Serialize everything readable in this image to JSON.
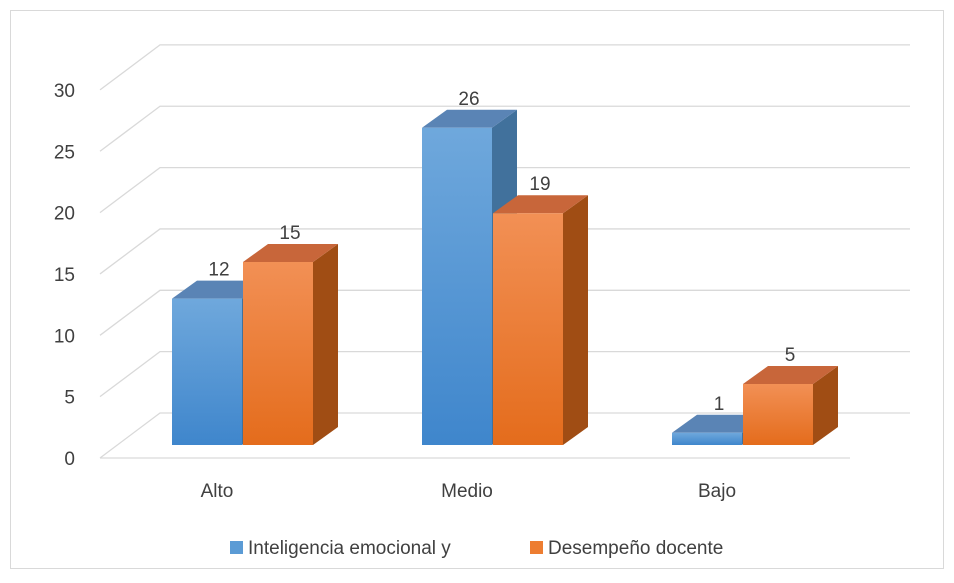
{
  "chart_data": {
    "type": "bar3d",
    "categories": [
      "Alto",
      "Medio",
      "Bajo"
    ],
    "series": [
      {
        "name": "Inteligencia emocional y",
        "color": "#5b9bd5",
        "values": [
          12,
          26,
          1
        ]
      },
      {
        "name": "Desempeño docente",
        "color": "#ed7d31",
        "values": [
          15,
          19,
          5
        ]
      }
    ],
    "ylim": [
      0,
      30
    ],
    "yticks": [
      0,
      5,
      10,
      15,
      20,
      25,
      30
    ],
    "grid": true,
    "legend": "bottom"
  }
}
